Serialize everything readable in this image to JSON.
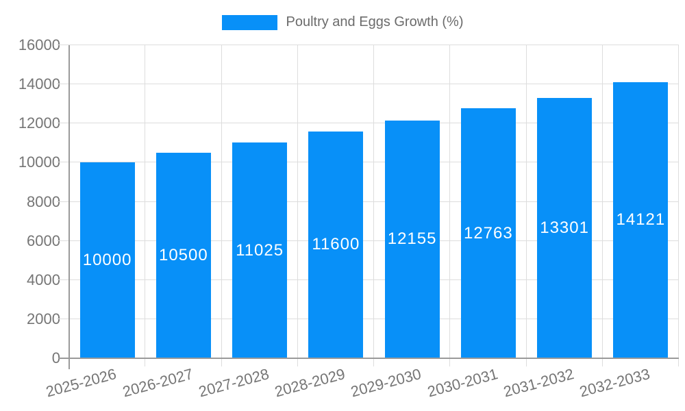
{
  "chart_data": {
    "type": "bar",
    "title": "",
    "legend": {
      "label": "Poultry and Eggs Growth (%)",
      "position": "top"
    },
    "categories": [
      "2025-2026",
      "2026-2027",
      "2027-2028",
      "2028-2029",
      "2029-2030",
      "2030-2031",
      "2031-2032",
      "2032-2033"
    ],
    "series": [
      {
        "name": "Poultry and Eggs Growth (%)",
        "values": [
          10000,
          10500,
          11025,
          11600,
          12155,
          12763,
          13301,
          14121
        ],
        "color": "#0890F8"
      }
    ],
    "xlabel": "",
    "ylabel": "",
    "ylim": [
      0,
      16000
    ],
    "yticks": [
      0,
      2000,
      4000,
      6000,
      8000,
      10000,
      12000,
      14000,
      16000
    ],
    "grid": true,
    "bar_value_labels": "centered-inside-white",
    "x_label_rotation_deg": -15,
    "colors": {
      "bar": "#0890F8",
      "bar_label_text": "#FFFFFF",
      "axis_text": "#757575",
      "legend_text": "#6B6B6B",
      "gridline": "#DDDDDD",
      "axis_line": "#9A9A9A",
      "background": "#FFFFFF"
    }
  }
}
